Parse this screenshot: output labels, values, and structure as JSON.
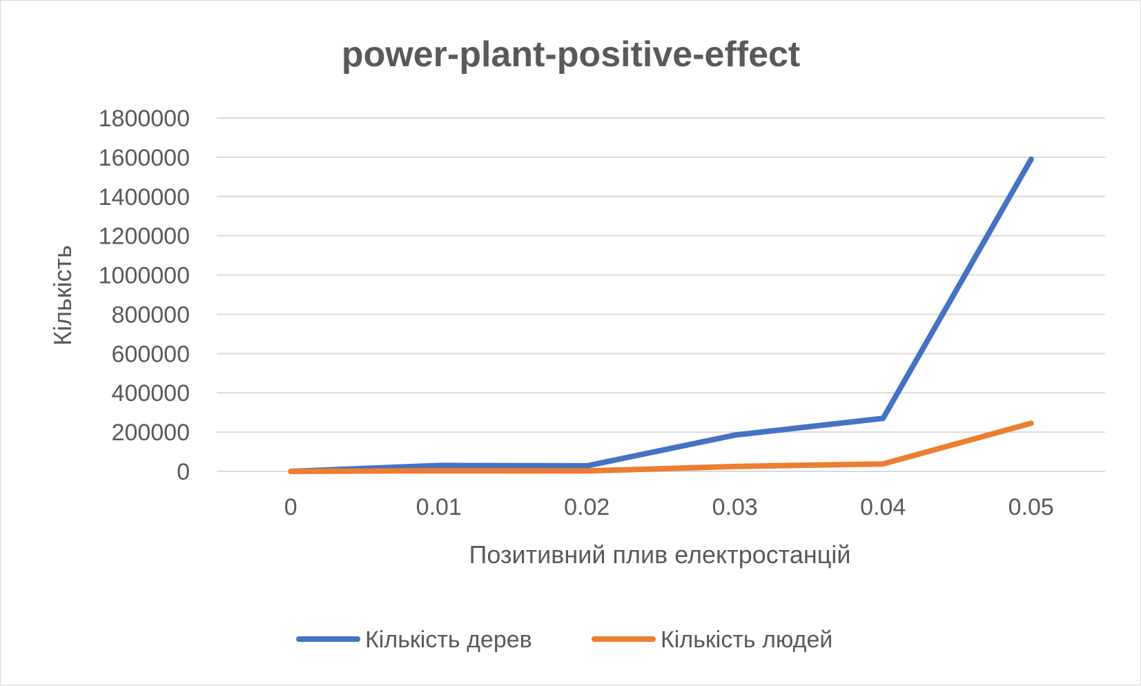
{
  "chart_data": {
    "type": "line",
    "title": "power-plant-positive-effect",
    "xlabel": "Позитивний плив електростанцій",
    "ylabel": "Кількість",
    "categories": [
      "0",
      "0.01",
      "0.02",
      "0.03",
      "0.04",
      "0.05"
    ],
    "y_ticks": [
      "0",
      "200000",
      "400000",
      "600000",
      "800000",
      "1000000",
      "1200000",
      "1400000",
      "1600000",
      "1800000"
    ],
    "ylim": [
      0,
      1800000
    ],
    "grid": true,
    "legend_position": "bottom",
    "series": [
      {
        "name": "Кількість дерев",
        "color": "#4472C4",
        "values": [
          0,
          30000,
          28000,
          185000,
          270000,
          1590000
        ]
      },
      {
        "name": "Кількість людей",
        "color": "#ED7D31",
        "values": [
          0,
          3000,
          2000,
          25000,
          38000,
          245000
        ]
      }
    ]
  }
}
